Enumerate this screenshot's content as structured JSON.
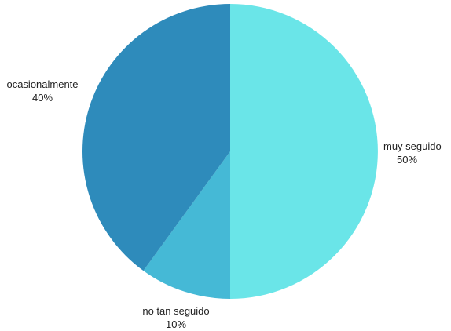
{
  "chart_data": {
    "type": "pie",
    "start_angle_deg": 0,
    "direction": "clockwise",
    "slices": [
      {
        "label": "muy seguido",
        "value": 50,
        "value_label": "50%",
        "color": "#6ae5e8"
      },
      {
        "label": "no tan seguido",
        "value": 10,
        "value_label": "10%",
        "color": "#45b9d6"
      },
      {
        "label": "ocasionalmente",
        "value": 40,
        "value_label": "40%",
        "color": "#2e8bbb"
      }
    ]
  }
}
